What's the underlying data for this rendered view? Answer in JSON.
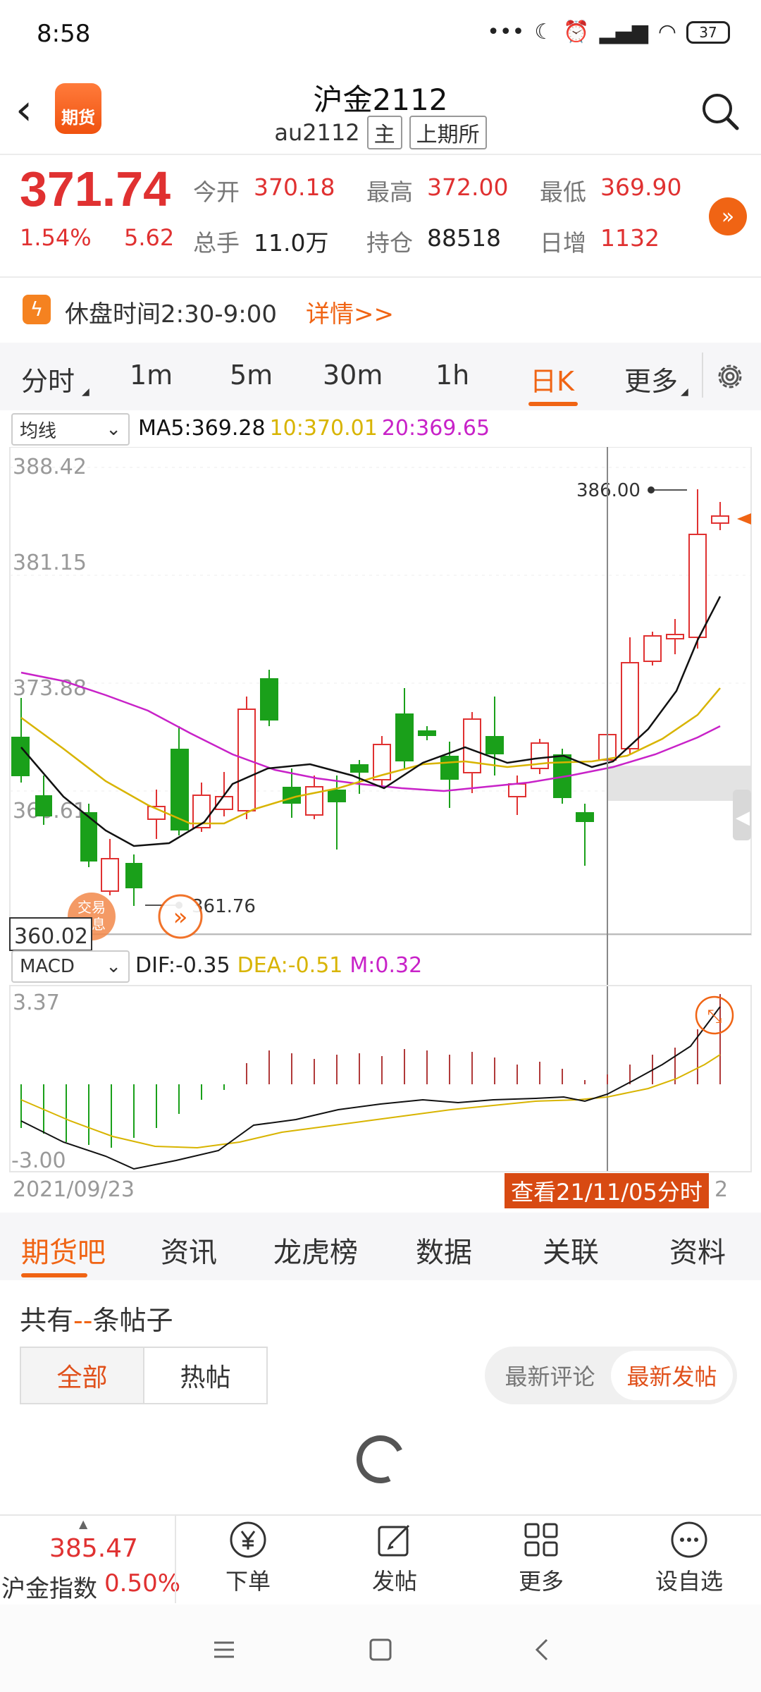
{
  "status": {
    "time": "8:58",
    "battery": "37"
  },
  "header": {
    "logo_text": "期货",
    "title": "沪金2112",
    "code": "au2112",
    "tag_main": "主",
    "tag_exchange": "上期所"
  },
  "quote": {
    "price": "371.74",
    "change_pct": "1.54%",
    "change_abs": "5.62",
    "open_label": "今开",
    "open": "370.18",
    "high_label": "最高",
    "high": "372.00",
    "low_label": "最低",
    "low": "369.90",
    "volume_label": "总手",
    "volume": "11.0万",
    "oi_label": "持仓",
    "oi": "88518",
    "daily_inc_label": "日增",
    "daily_inc": "1132"
  },
  "notice": {
    "text": "休盘时间2:30-9:00",
    "link": "详情>>"
  },
  "period_tabs": [
    "分时",
    "1m",
    "5m",
    "30m",
    "1h",
    "日K",
    "更多"
  ],
  "ma": {
    "selector": "均线",
    "ma5": "MA5:369.28",
    "ma10": "10:370.01",
    "ma20": "20:369.65",
    "color_ma5": "#111111",
    "color_ma10": "#d8b400",
    "color_ma20": "#c822c8"
  },
  "kchart": {
    "y_labels": [
      "388.42",
      "381.15",
      "373.88",
      "366.61",
      "360.02"
    ],
    "high_marker": "386.00",
    "low_marker": "361.76",
    "trade_info_badge": "交易\n信息"
  },
  "macd": {
    "selector": "MACD",
    "dif": "DIF:-0.35",
    "dea": "DEA:-0.51",
    "m": "M:0.32",
    "y_top": "3.37",
    "y_bottom": "-3.00"
  },
  "timeline": {
    "start_date": "2021/09/23",
    "view_button": "查看21/11/05分时",
    "end_label": "2"
  },
  "community": {
    "tabs": [
      "期货吧",
      "资讯",
      "龙虎榜",
      "数据",
      "关联",
      "资料"
    ],
    "count_prefix": "共有",
    "count_value": "--",
    "count_suffix": "条帖子",
    "filter_all": "全部",
    "filter_hot": "热帖",
    "sort_comment": "最新评论",
    "sort_post": "最新发帖"
  },
  "toolbar": {
    "index_value": "385.47",
    "index_name": "沪金指数",
    "index_pct": "0.50%",
    "order": "下单",
    "post": "发帖",
    "more": "更多",
    "watchlist": "设自选"
  },
  "colors": {
    "accent": "#f06414",
    "up": "#e03131",
    "down": "#1aa01a"
  }
}
